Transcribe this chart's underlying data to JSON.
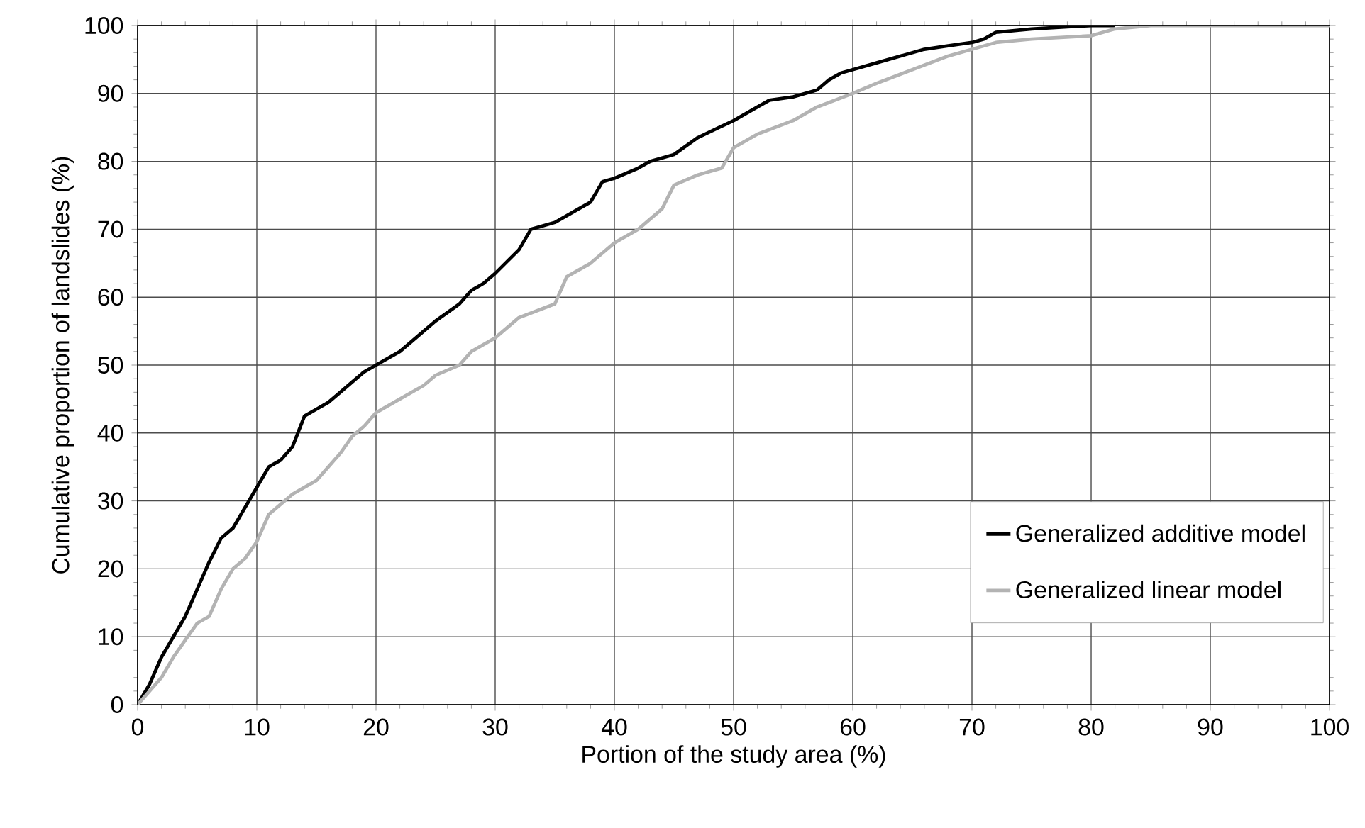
{
  "chart_data": {
    "type": "line",
    "xlabel": "Portion of the study area (%)",
    "ylabel": "Cumulative proportion of landslides (%)",
    "xlim": [
      0,
      100
    ],
    "ylim": [
      0,
      100
    ],
    "xticks": [
      0,
      10,
      20,
      30,
      40,
      50,
      60,
      70,
      80,
      90,
      100
    ],
    "yticks": [
      0,
      10,
      20,
      30,
      40,
      50,
      60,
      70,
      80,
      90,
      100
    ],
    "grid": true,
    "legend": "bottom right",
    "marker": "none",
    "line_style": "solid",
    "series": [
      {
        "name": "Generalized additive model",
        "color": "#000000",
        "x": [
          0,
          1,
          2,
          3,
          4,
          5,
          6,
          7,
          8,
          9,
          10,
          11,
          12,
          13,
          14,
          15,
          16,
          17,
          18,
          19,
          20,
          22,
          24,
          25,
          27,
          28,
          29,
          30,
          32,
          33,
          35,
          37,
          38,
          39,
          40,
          42,
          43,
          45,
          47,
          50,
          52,
          53,
          55,
          57,
          58,
          59,
          60,
          62,
          64,
          66,
          68,
          70,
          71,
          72,
          75,
          80,
          82
        ],
        "values": [
          0,
          3,
          7,
          10,
          13,
          17,
          21,
          24.5,
          26,
          29,
          32,
          35,
          36,
          38,
          42.5,
          43.5,
          44.5,
          46,
          47.5,
          49,
          50,
          52,
          55,
          56.5,
          59,
          61,
          62,
          63.5,
          67,
          70,
          71,
          73,
          74,
          77,
          77.5,
          79,
          80,
          81,
          83.5,
          86,
          88,
          89,
          89.5,
          90.5,
          92,
          93,
          93.5,
          94.5,
          95.5,
          96.5,
          97,
          97.5,
          98,
          99,
          99.5,
          100,
          100
        ]
      },
      {
        "name": "Generalized linear model",
        "color": "#b3b3b3",
        "x": [
          0,
          1,
          2,
          3,
          4,
          5,
          6,
          7,
          8,
          9,
          10,
          11,
          12,
          13,
          14,
          15,
          16,
          17,
          18,
          19,
          20,
          22,
          24,
          25,
          27,
          28,
          30,
          32,
          35,
          36,
          38,
          40,
          42,
          44,
          45,
          47,
          49,
          50,
          52,
          55,
          57,
          60,
          62,
          65,
          68,
          70,
          72,
          75,
          80,
          82,
          85,
          100
        ],
        "values": [
          0,
          2,
          4,
          7,
          9.5,
          12,
          13,
          17,
          20,
          21.5,
          24,
          28,
          29.5,
          31,
          32,
          33,
          35,
          37,
          39.5,
          41,
          43,
          45,
          47,
          48.5,
          50,
          52,
          54,
          57,
          59,
          63,
          65,
          68,
          70,
          73,
          76.5,
          78,
          79,
          82,
          84,
          86,
          88,
          90,
          91.5,
          93.5,
          95.5,
          96.5,
          97.5,
          98,
          98.5,
          99.5,
          100,
          100
        ]
      }
    ]
  }
}
